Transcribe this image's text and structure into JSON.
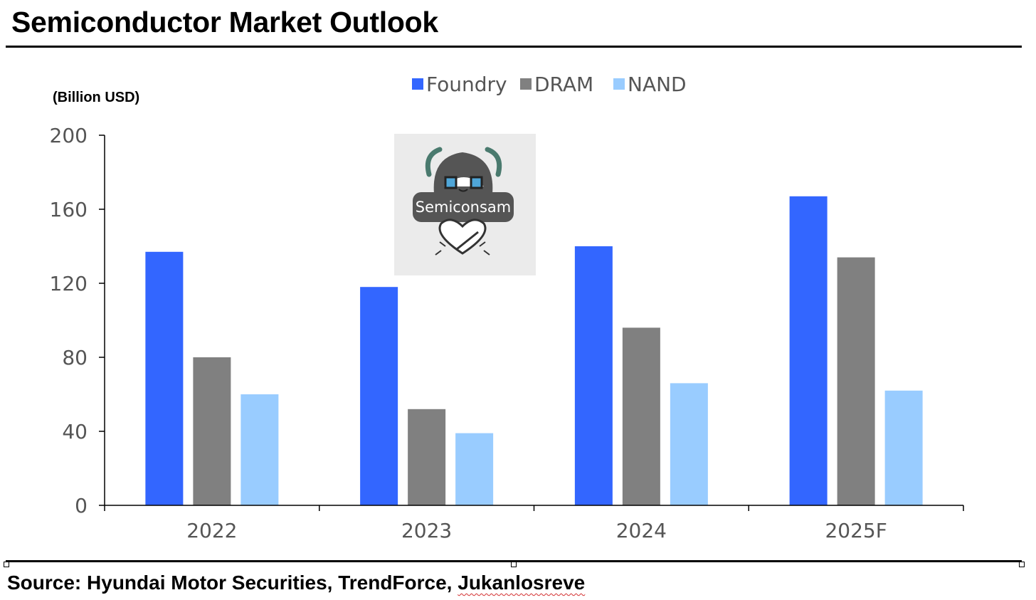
{
  "page": {
    "title": "Semiconductor Market Outlook",
    "source_prefix": "Source: Hyundai Motor Securities, TrendForce, ",
    "source_name": "Jukanlosreve"
  },
  "watermark": {
    "label": "Semiconsam",
    "icon": "mascot-logo-icon",
    "background": "#ebebeb"
  },
  "chart_data": {
    "type": "bar",
    "ylabel": "(Billion USD)",
    "categories": [
      "2022",
      "2023",
      "2024",
      "2025F"
    ],
    "series": [
      {
        "name": "Foundry",
        "color": "#3366ff",
        "values": [
          137,
          118,
          140,
          167
        ]
      },
      {
        "name": "DRAM",
        "color": "#808080",
        "values": [
          80,
          52,
          96,
          134
        ]
      },
      {
        "name": "NAND",
        "color": "#99ccff",
        "values": [
          60,
          39,
          66,
          62
        ]
      }
    ],
    "ylim": [
      0,
      200
    ],
    "yticks": [
      "0",
      "40",
      "80",
      "120",
      "160",
      "200"
    ],
    "legend_position": "top-center",
    "grid": false
  }
}
